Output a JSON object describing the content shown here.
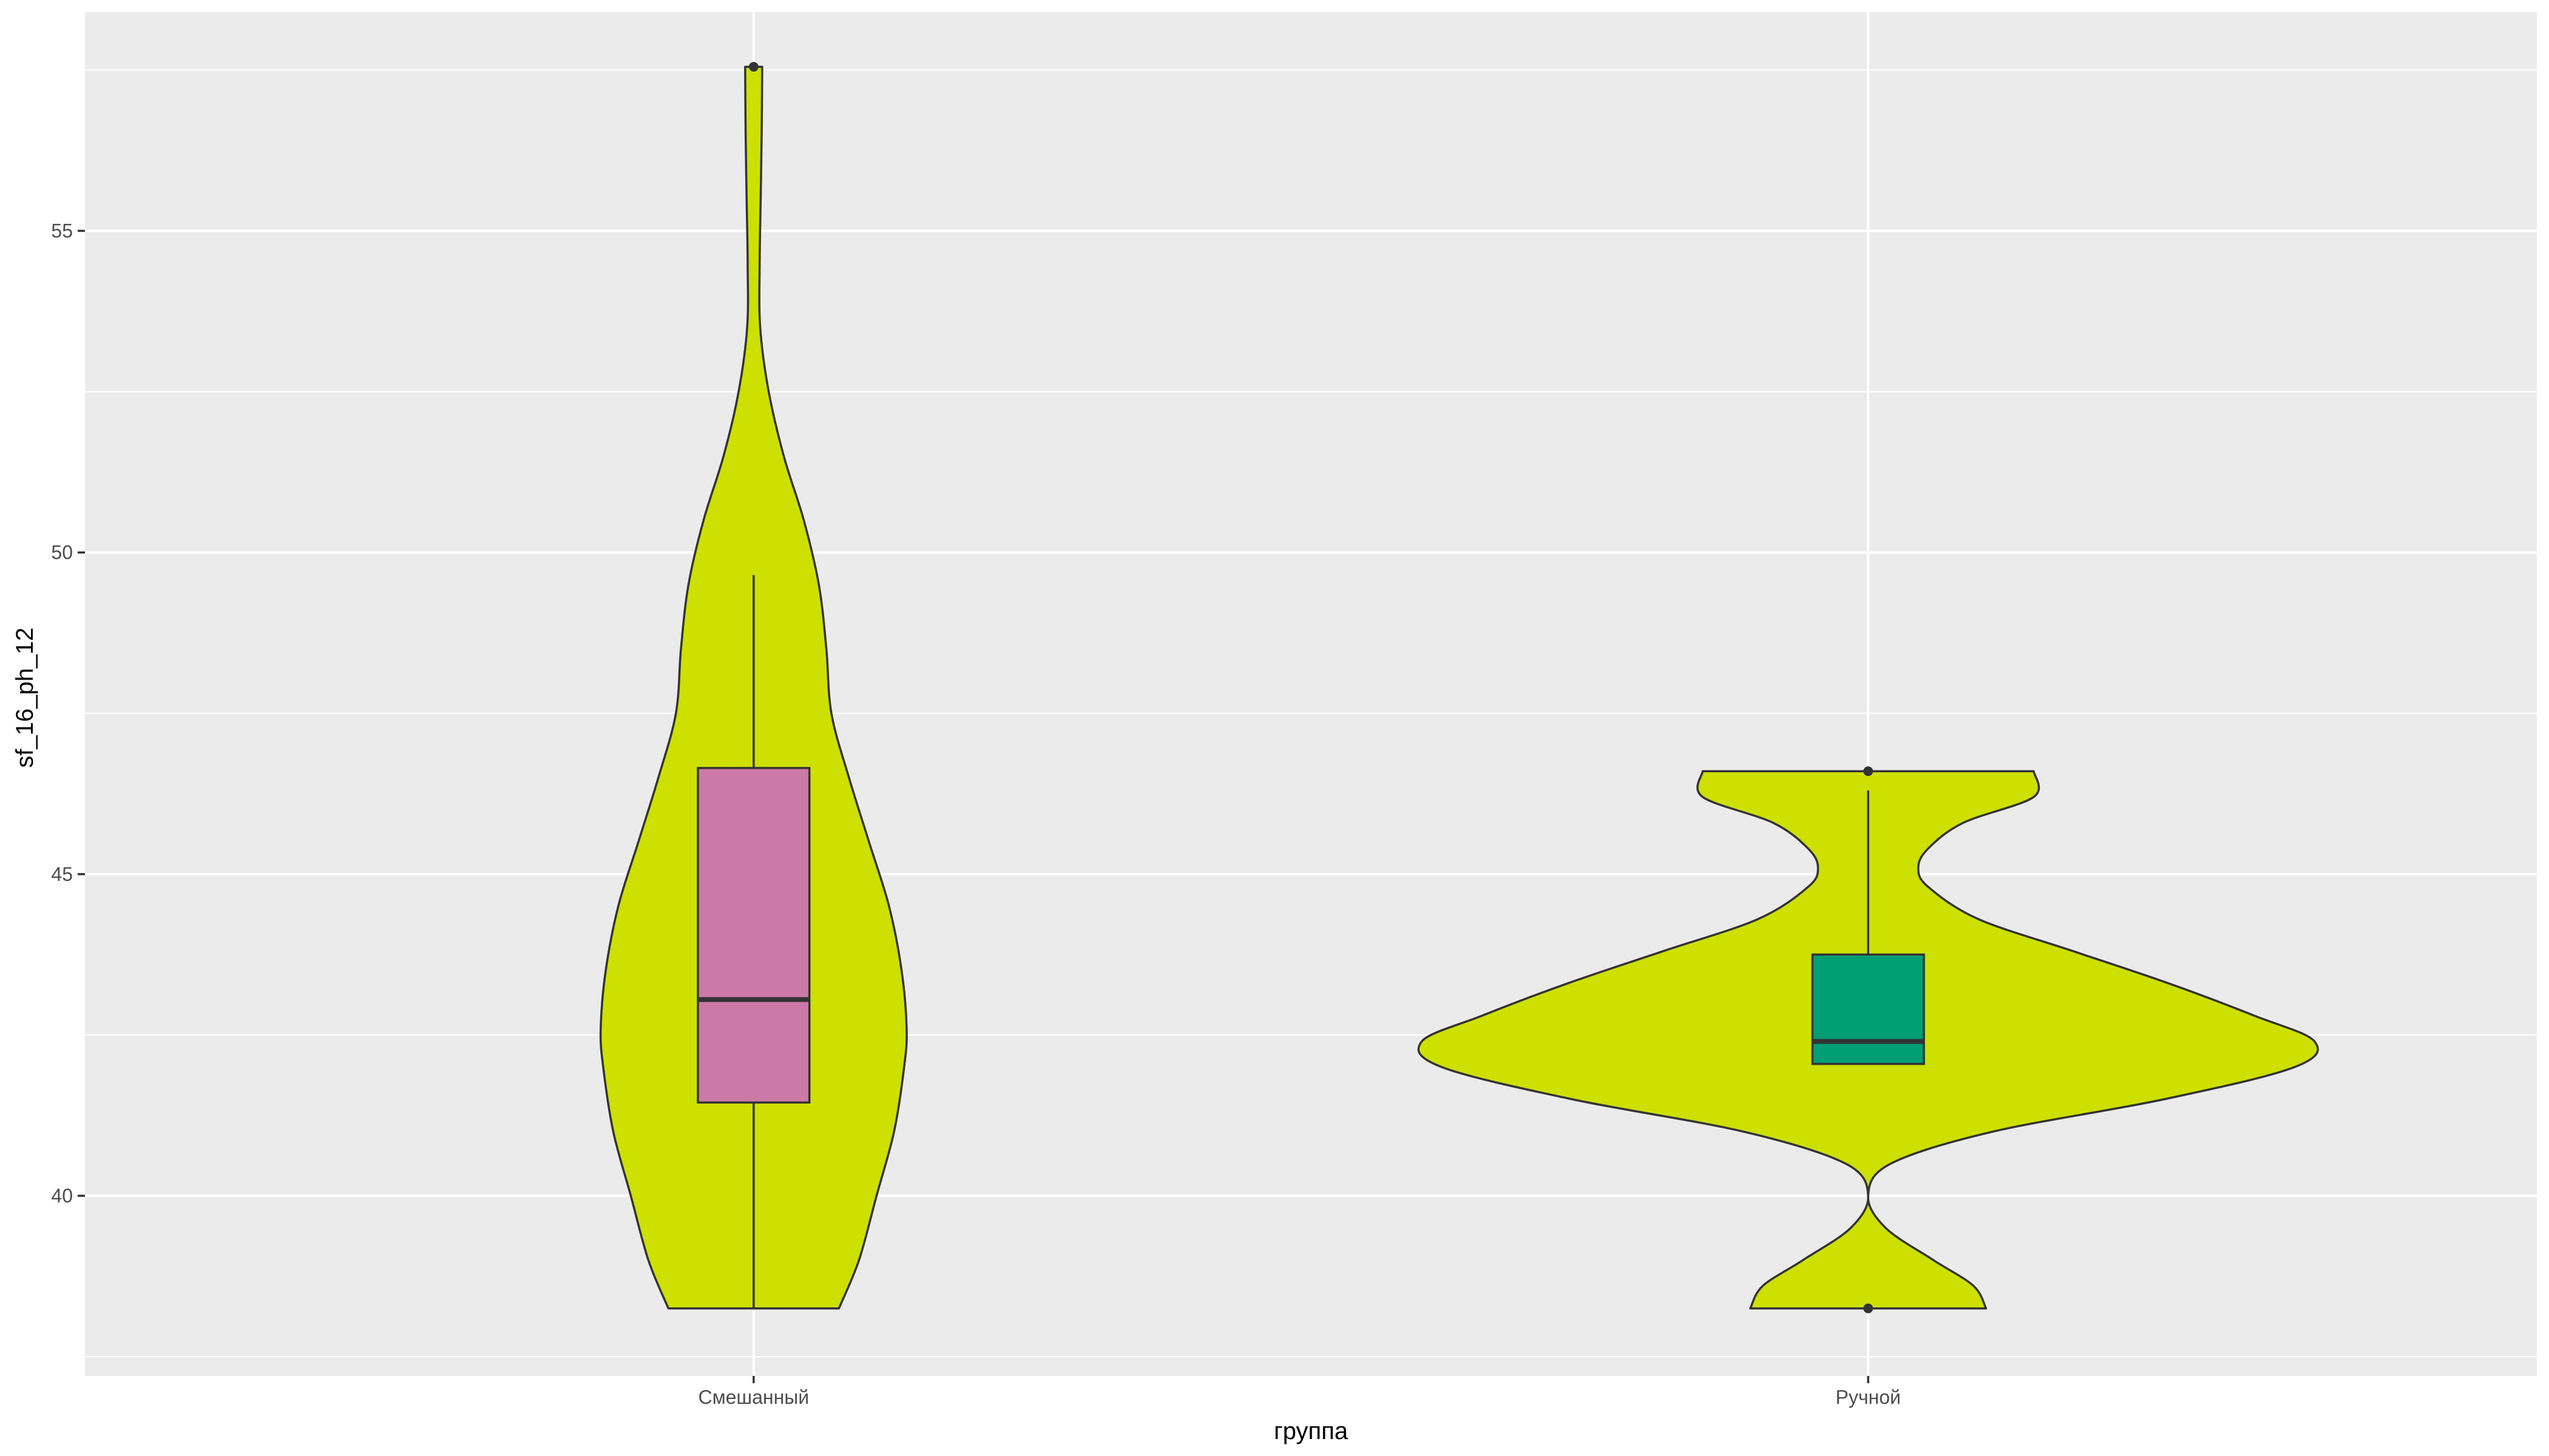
{
  "chart_data": {
    "type": "violin",
    "title": "",
    "xlabel": "группа",
    "ylabel": "sf_16_ph_12",
    "categories": [
      "Смешанный",
      "Ручной"
    ],
    "y_ticks": [
      40,
      45,
      50,
      55
    ],
    "ylim": [
      37.2,
      58.4
    ],
    "colors": {
      "panel_bg": "#ebebeb",
      "grid": "#ffffff",
      "violin_fill": "#cde000",
      "outline": "#333333",
      "tick_text": "#4d4d4d"
    },
    "groups": [
      {
        "name": "Смешанный",
        "box_color": "#cc79a7",
        "box": {
          "q1": 41.45,
          "median": 43.05,
          "q3": 46.65,
          "whisker_low": 38.25,
          "whisker_high": 49.65
        },
        "outliers": [
          57.55
        ],
        "violin": {
          "y": [
            38.25,
            39.0,
            40.0,
            41.0,
            42.0,
            42.6,
            43.5,
            44.5,
            45.5,
            46.5,
            47.5,
            48.5,
            49.5,
            50.5,
            51.5,
            52.5,
            53.5,
            54.5,
            55.5,
            56.5,
            57.55
          ],
          "width": [
            0.17,
            0.21,
            0.245,
            0.28,
            0.3,
            0.305,
            0.295,
            0.27,
            0.23,
            0.19,
            0.155,
            0.145,
            0.13,
            0.1,
            0.06,
            0.03,
            0.013,
            0.012,
            0.014,
            0.016,
            0.017
          ]
        }
      },
      {
        "name": "Ручной",
        "box_color": "#009e73",
        "box": {
          "q1": 42.05,
          "median": 42.4,
          "q3": 43.75,
          "whisker_low": 42.05,
          "whisker_high": 46.3
        },
        "outliers": [
          38.25,
          46.6
        ],
        "violin": {
          "y": [
            38.25,
            38.6,
            39.0,
            39.5,
            40.0,
            40.5,
            41.0,
            41.5,
            42.0,
            42.4,
            42.8,
            43.3,
            43.8,
            44.3,
            44.8,
            45.1,
            45.4,
            45.8,
            46.2,
            46.6
          ],
          "width": [
            0.235,
            0.21,
            0.13,
            0.035,
            0.0,
            0.045,
            0.25,
            0.59,
            0.85,
            0.89,
            0.77,
            0.6,
            0.41,
            0.22,
            0.12,
            0.1,
            0.12,
            0.19,
            0.33,
            0.33
          ]
        }
      }
    ]
  }
}
